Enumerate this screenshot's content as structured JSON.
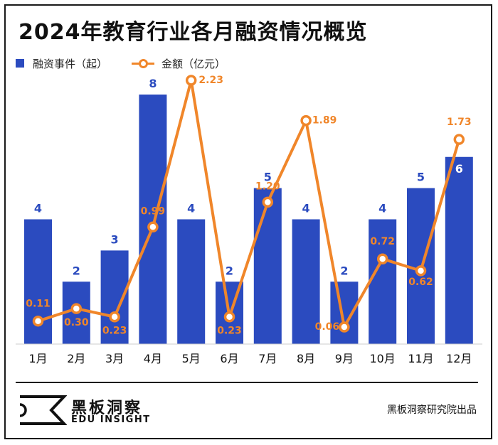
{
  "title": "2024年教育行业各月融资情况概览",
  "legend": {
    "bar_label": "融资事件（起）",
    "line_label": "金额（亿元）"
  },
  "colors": {
    "bar": "#2b4bbf",
    "line": "#f0862a",
    "bar_label_text": "#2b4bbf",
    "line_label_text": "#f0862a"
  },
  "chart_data": {
    "type": "bar",
    "title": "2024年教育行业各月融资情况概览",
    "categories": [
      "1月",
      "2月",
      "3月",
      "4月",
      "5月",
      "6月",
      "7月",
      "8月",
      "9月",
      "10月",
      "11月",
      "12月"
    ],
    "series": [
      {
        "name": "融资事件（起）",
        "type": "bar",
        "values": [
          4,
          2,
          3,
          8,
          4,
          2,
          5,
          4,
          2,
          4,
          5,
          6
        ]
      },
      {
        "name": "金额（亿元）",
        "type": "line",
        "values": [
          0.11,
          0.3,
          0.23,
          0.99,
          2.23,
          0.23,
          1.2,
          1.89,
          0.06,
          0.72,
          0.62,
          1.73
        ]
      }
    ],
    "bar_labels": [
      "4",
      "2",
      "3",
      "8",
      "4",
      "2",
      "5",
      "4",
      "2",
      "4",
      "5",
      "6"
    ],
    "line_labels": [
      "0.11",
      "0.30",
      "0.23",
      "0.99",
      "2.23",
      "0.23",
      "1.20",
      "1.89",
      "0.06",
      "0.72",
      "0.62",
      "1.73"
    ],
    "bar_ylim": [
      0,
      8
    ],
    "line_ylim": [
      0,
      2.23
    ],
    "grid": false,
    "legend_position": "top-left"
  },
  "footer": {
    "brand_name": "黑板洞察",
    "brand_sub": "EDU INSIGHT",
    "source": "黑板洞察研究院出品"
  }
}
